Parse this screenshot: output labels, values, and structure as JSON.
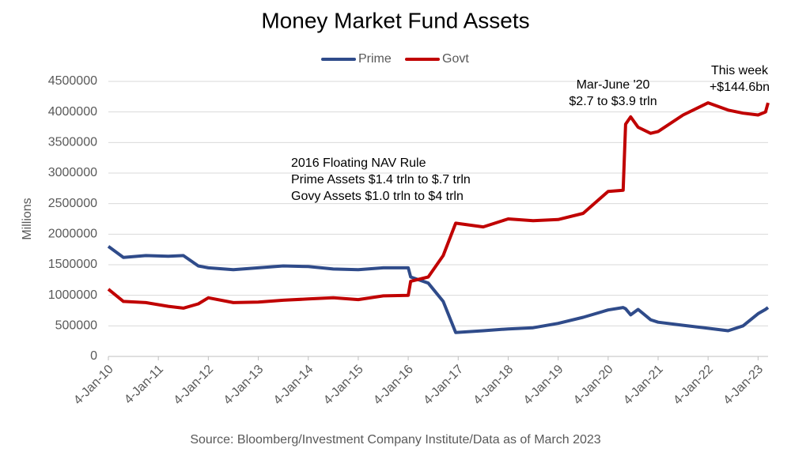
{
  "chart_data": {
    "type": "line",
    "title": "Money Market Fund Assets",
    "y_label": "Millions",
    "source": "Source: Bloomberg/Investment Company Institute/Data as of March 2023",
    "annotations": [
      {
        "lines": [
          "2016 Floating NAV Rule",
          "Prime Assets $1.4 trln to $.7 trln",
          "Govy Assets $1.0 trln to $4 trln"
        ]
      },
      {
        "lines": [
          "Mar-June '20",
          "$2.7 to $3.9 trln"
        ]
      },
      {
        "lines": [
          "This week",
          "+$144.6bn"
        ]
      }
    ],
    "x": [
      2010,
      2010.3,
      2010.75,
      2011.2,
      2011.5,
      2011.8,
      2012,
      2012.5,
      2013,
      2013.5,
      2014,
      2014.5,
      2015,
      2015.5,
      2016,
      2016.05,
      2016.4,
      2016.7,
      2016.95,
      2017.5,
      2018,
      2018.5,
      2019,
      2019.5,
      2020,
      2020.3,
      2020.35,
      2020.45,
      2020.6,
      2020.85,
      2021,
      2021.5,
      2022,
      2022.4,
      2022.7,
      2023,
      2023.15,
      2023.2
    ],
    "series": [
      {
        "name": "Prime",
        "color": "#2f4b8a",
        "values": [
          1800000,
          1620000,
          1650000,
          1640000,
          1650000,
          1480000,
          1450000,
          1420000,
          1450000,
          1480000,
          1470000,
          1430000,
          1420000,
          1450000,
          1450000,
          1300000,
          1200000,
          900000,
          390000,
          420000,
          450000,
          470000,
          540000,
          640000,
          760000,
          800000,
          780000,
          680000,
          770000,
          600000,
          560000,
          510000,
          460000,
          420000,
          500000,
          700000,
          770000,
          800000
        ]
      },
      {
        "name": "Govt",
        "color": "#c00000",
        "values": [
          1100000,
          900000,
          880000,
          820000,
          790000,
          860000,
          960000,
          880000,
          890000,
          920000,
          940000,
          960000,
          930000,
          990000,
          1000000,
          1230000,
          1300000,
          1650000,
          2180000,
          2120000,
          2250000,
          2220000,
          2240000,
          2340000,
          2700000,
          2720000,
          3800000,
          3920000,
          3750000,
          3650000,
          3680000,
          3950000,
          4150000,
          4030000,
          3980000,
          3950000,
          4000000,
          4150000
        ]
      }
    ],
    "xlim": [
      2010,
      2023.2
    ],
    "xticks": [
      {
        "value": 2010,
        "label": "4-Jan-10"
      },
      {
        "value": 2011,
        "label": "4-Jan-11"
      },
      {
        "value": 2012,
        "label": "4-Jan-12"
      },
      {
        "value": 2013,
        "label": "4-Jan-13"
      },
      {
        "value": 2014,
        "label": "4-Jan-14"
      },
      {
        "value": 2015,
        "label": "4-Jan-15"
      },
      {
        "value": 2016,
        "label": "4-Jan-16"
      },
      {
        "value": 2017,
        "label": "4-Jan-17"
      },
      {
        "value": 2018,
        "label": "4-Jan-18"
      },
      {
        "value": 2019,
        "label": "4-Jan-19"
      },
      {
        "value": 2020,
        "label": "4-Jan-20"
      },
      {
        "value": 2021,
        "label": "4-Jan-21"
      },
      {
        "value": 2022,
        "label": "4-Jan-22"
      },
      {
        "value": 2023,
        "label": "4-Jan-23"
      }
    ],
    "ylim": [
      0,
      4500000
    ],
    "yticks": [
      0,
      500000,
      1000000,
      1500000,
      2000000,
      2500000,
      3000000,
      3500000,
      4000000,
      4500000
    ],
    "grid": true,
    "legend": "top"
  }
}
